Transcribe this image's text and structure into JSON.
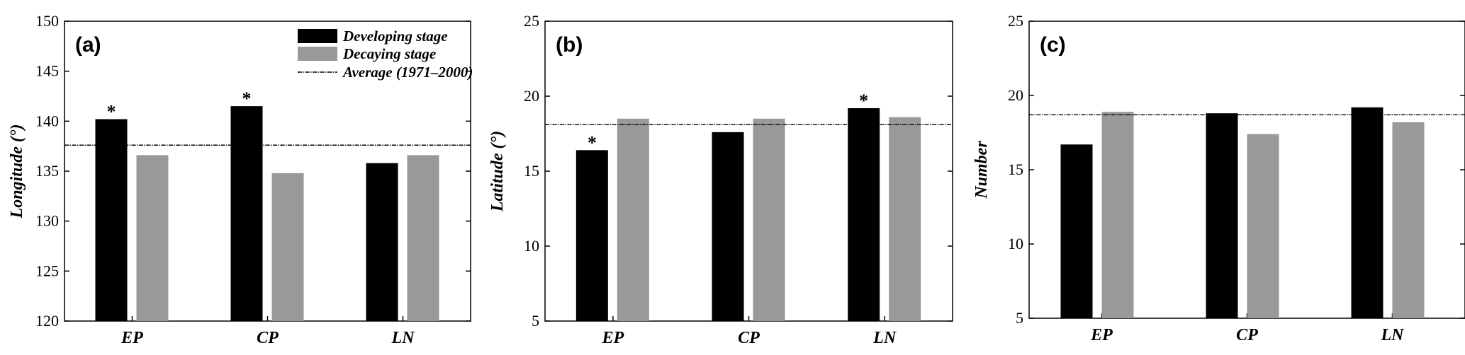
{
  "colors": {
    "developing": "#000000",
    "decaying": "#999999",
    "average_line": "#000000"
  },
  "legend": {
    "developing": "Developing stage",
    "decaying": "Decaying stage",
    "average": "Average (1971–2000)"
  },
  "chart_data": [
    {
      "type": "bar",
      "panel_label": "(a)",
      "ylabel": "Longitude (°)",
      "ylim": [
        120,
        150
      ],
      "yticks": [
        120,
        125,
        130,
        135,
        140,
        145,
        150
      ],
      "categories": [
        "EP",
        "CP",
        "LN"
      ],
      "series": [
        {
          "name": "Developing stage",
          "values": [
            140.2,
            141.5,
            135.8
          ]
        },
        {
          "name": "Decaying stage",
          "values": [
            136.6,
            134.8,
            136.6
          ]
        }
      ],
      "average": 137.6,
      "significance": [
        {
          "series": 0,
          "category": 0,
          "mark": "*"
        },
        {
          "series": 0,
          "category": 1,
          "mark": "*"
        }
      ],
      "legend_position": "top-right"
    },
    {
      "type": "bar",
      "panel_label": "(b)",
      "ylabel": "Latitude (°)",
      "ylim": [
        5,
        25
      ],
      "yticks": [
        5,
        10,
        15,
        20,
        25
      ],
      "categories": [
        "EP",
        "CP",
        "LN"
      ],
      "series": [
        {
          "name": "Developing stage",
          "values": [
            16.4,
            17.6,
            19.2
          ]
        },
        {
          "name": "Decaying stage",
          "values": [
            18.5,
            18.5,
            18.6
          ]
        }
      ],
      "average": 18.1,
      "significance": [
        {
          "series": 0,
          "category": 0,
          "mark": "*"
        },
        {
          "series": 0,
          "category": 2,
          "mark": "*"
        }
      ]
    },
    {
      "type": "bar",
      "panel_label": "(c)",
      "ylabel": "Number",
      "ylim": [
        5,
        25
      ],
      "yticks": [
        5,
        10,
        15,
        20,
        25
      ],
      "categories": [
        "EP",
        "CP",
        "LN"
      ],
      "series": [
        {
          "name": "Developing stage",
          "values": [
            16.7,
            18.8,
            19.2
          ]
        },
        {
          "name": "Decaying stage",
          "values": [
            18.9,
            17.4,
            18.2
          ]
        }
      ],
      "average": 18.7,
      "significance": []
    }
  ]
}
